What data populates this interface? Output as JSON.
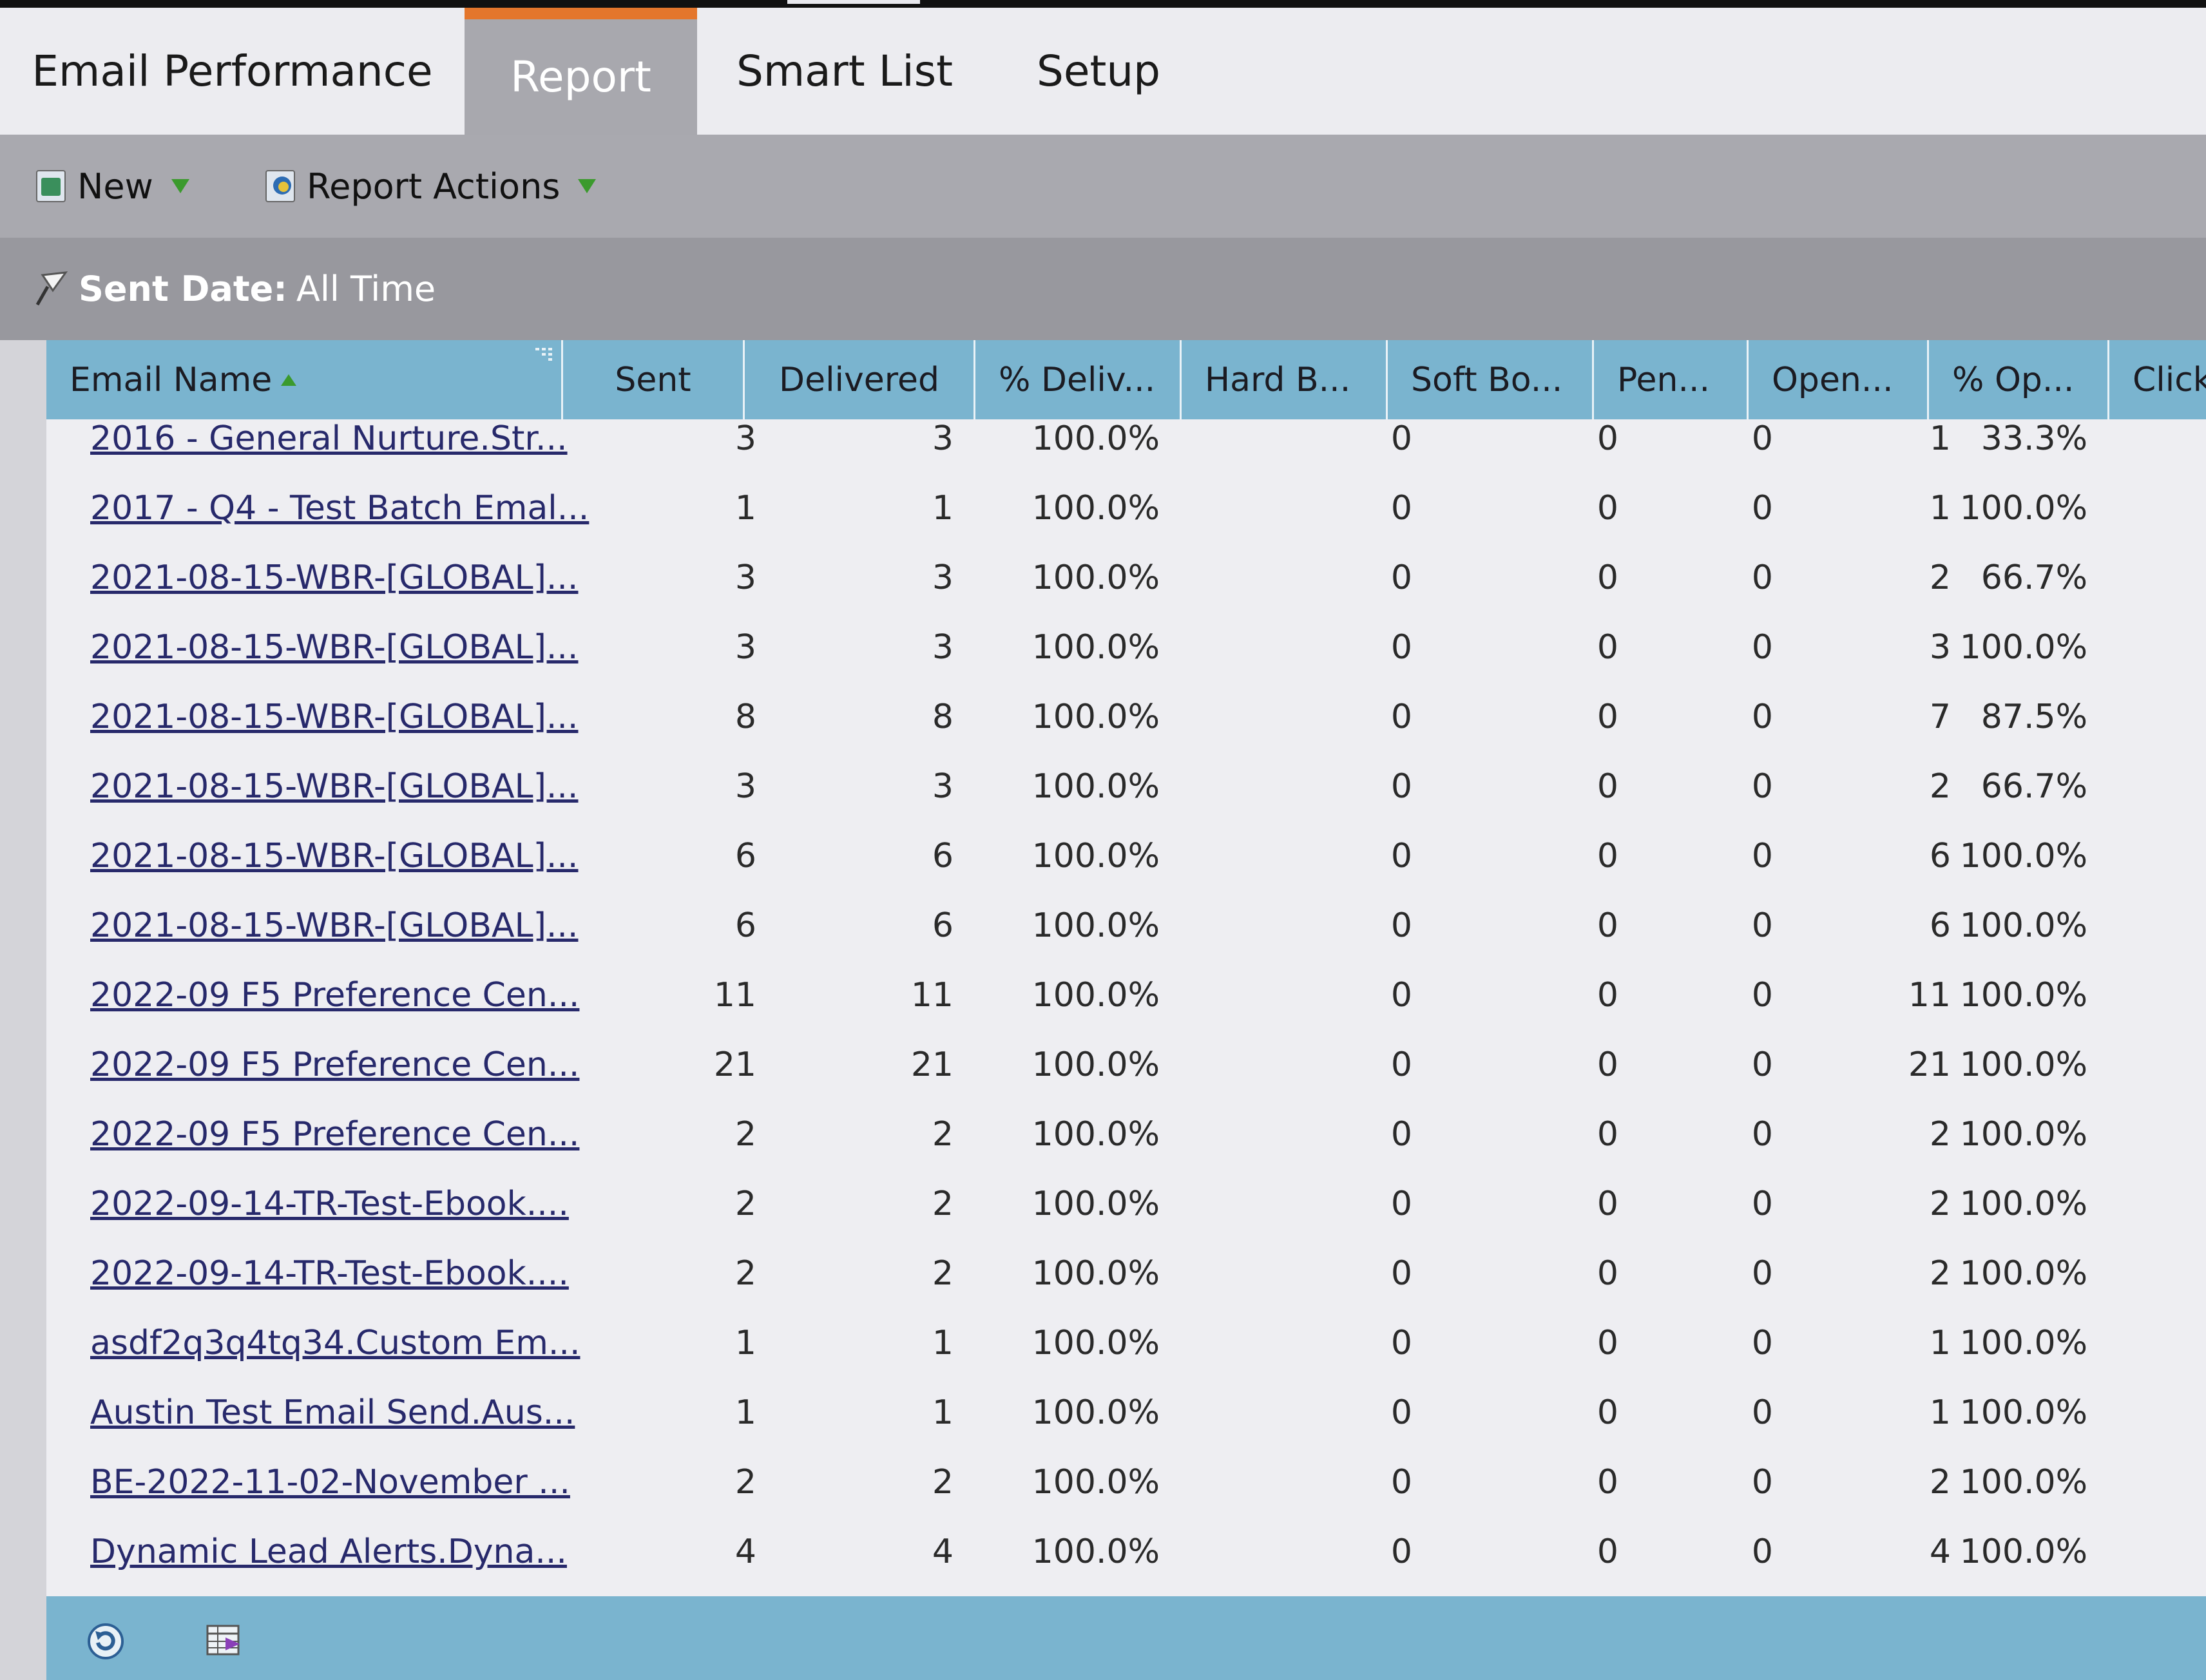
{
  "tabs": [
    {
      "label": "Email Performance",
      "active": false
    },
    {
      "label": "Report",
      "active": true
    },
    {
      "label": "Smart List",
      "active": false
    },
    {
      "label": "Setup",
      "active": false
    }
  ],
  "toolbar": {
    "new_label": "New",
    "report_actions_label": "Report Actions"
  },
  "filter": {
    "label": "Sent Date:",
    "value": "All Time"
  },
  "columns": [
    "Email Name",
    "Sent",
    "Delivered",
    "% Deliv...",
    "Hard B...",
    "Soft Bo...",
    "Pen...",
    "Open...",
    "% Op...",
    "Click"
  ],
  "rows": [
    [
      "2016 - General Nurture.Str...",
      "3",
      "3",
      "100.0%",
      "0",
      "0",
      "0",
      "1",
      "33.3%"
    ],
    [
      "2017 - Q4 - Test Batch Emal...",
      "1",
      "1",
      "100.0%",
      "0",
      "0",
      "0",
      "1",
      "100.0%"
    ],
    [
      "2021-08-15-WBR-[GLOBAL]...",
      "3",
      "3",
      "100.0%",
      "0",
      "0",
      "0",
      "2",
      "66.7%"
    ],
    [
      "2021-08-15-WBR-[GLOBAL]...",
      "3",
      "3",
      "100.0%",
      "0",
      "0",
      "0",
      "3",
      "100.0%"
    ],
    [
      "2021-08-15-WBR-[GLOBAL]...",
      "8",
      "8",
      "100.0%",
      "0",
      "0",
      "0",
      "7",
      "87.5%"
    ],
    [
      "2021-08-15-WBR-[GLOBAL]...",
      "3",
      "3",
      "100.0%",
      "0",
      "0",
      "0",
      "2",
      "66.7%"
    ],
    [
      "2021-08-15-WBR-[GLOBAL]...",
      "6",
      "6",
      "100.0%",
      "0",
      "0",
      "0",
      "6",
      "100.0%"
    ],
    [
      "2021-08-15-WBR-[GLOBAL]...",
      "6",
      "6",
      "100.0%",
      "0",
      "0",
      "0",
      "6",
      "100.0%"
    ],
    [
      "2022-09 F5 Preference Cen...",
      "11",
      "11",
      "100.0%",
      "0",
      "0",
      "0",
      "11",
      "100.0%"
    ],
    [
      "2022-09 F5 Preference Cen...",
      "21",
      "21",
      "100.0%",
      "0",
      "0",
      "0",
      "21",
      "100.0%"
    ],
    [
      "2022-09 F5 Preference Cen...",
      "2",
      "2",
      "100.0%",
      "0",
      "0",
      "0",
      "2",
      "100.0%"
    ],
    [
      "2022-09-14-TR-Test-Ebook....",
      "2",
      "2",
      "100.0%",
      "0",
      "0",
      "0",
      "2",
      "100.0%"
    ],
    [
      "2022-09-14-TR-Test-Ebook....",
      "2",
      "2",
      "100.0%",
      "0",
      "0",
      "0",
      "2",
      "100.0%"
    ],
    [
      "asdf2q3q4tq34.Custom Em...",
      "1",
      "1",
      "100.0%",
      "0",
      "0",
      "0",
      "1",
      "100.0%"
    ],
    [
      "Austin Test Email Send.Aus...",
      "1",
      "1",
      "100.0%",
      "0",
      "0",
      "0",
      "1",
      "100.0%"
    ],
    [
      "BE-2022-11-02-November ...",
      "2",
      "2",
      "100.0%",
      "0",
      "0",
      "0",
      "2",
      "100.0%"
    ],
    [
      "Dynamic Lead Alerts.Dyna...",
      "4",
      "4",
      "100.0%",
      "0",
      "0",
      "0",
      "4",
      "100.0%"
    ]
  ],
  "colors": {
    "accent_tab": "#e4762c",
    "header_blue": "#7ab4cf",
    "link": "#27296b",
    "toolbar_gray": "#a9a9af",
    "filter_gray": "#98989e"
  },
  "icons": {
    "new": "new-report-icon",
    "report_actions": "report-actions-icon",
    "filter": "pushpin-icon",
    "footer_refresh": "refresh-icon",
    "footer_export": "export-grid-icon"
  }
}
